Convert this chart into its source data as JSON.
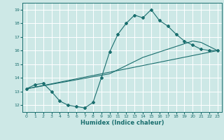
{
  "xlabel": "Humidex (Indice chaleur)",
  "ylabel": "",
  "xlim": [
    -0.5,
    23.5
  ],
  "ylim": [
    11.5,
    19.5
  ],
  "xticks": [
    0,
    1,
    2,
    3,
    4,
    5,
    6,
    7,
    8,
    9,
    10,
    11,
    12,
    13,
    14,
    15,
    16,
    17,
    18,
    19,
    20,
    21,
    22,
    23
  ],
  "yticks": [
    12,
    13,
    14,
    15,
    16,
    17,
    18,
    19
  ],
  "bg_color": "#cde8e6",
  "line_color": "#1a6e6e",
  "grid_color": "#ffffff",
  "line1_x": [
    0,
    1,
    2,
    3,
    4,
    5,
    6,
    7,
    8,
    9,
    10,
    11,
    12,
    13,
    14,
    15,
    16,
    17,
    18,
    19,
    20,
    21,
    22,
    23
  ],
  "line1_y": [
    13.2,
    13.5,
    13.6,
    13.0,
    12.3,
    12.0,
    11.9,
    11.8,
    12.2,
    14.0,
    15.9,
    17.2,
    18.0,
    18.6,
    18.4,
    19.0,
    18.2,
    17.8,
    17.2,
    16.7,
    16.4,
    16.1,
    16.0,
    16.0
  ],
  "line2_x": [
    0,
    23
  ],
  "line2_y": [
    13.2,
    16.0
  ],
  "line3_x": [
    0,
    10,
    14,
    20,
    21,
    23
  ],
  "line3_y": [
    13.2,
    14.3,
    15.5,
    16.7,
    16.6,
    16.0
  ],
  "tick_fontsize": 4.5,
  "xlabel_fontsize": 6.0
}
